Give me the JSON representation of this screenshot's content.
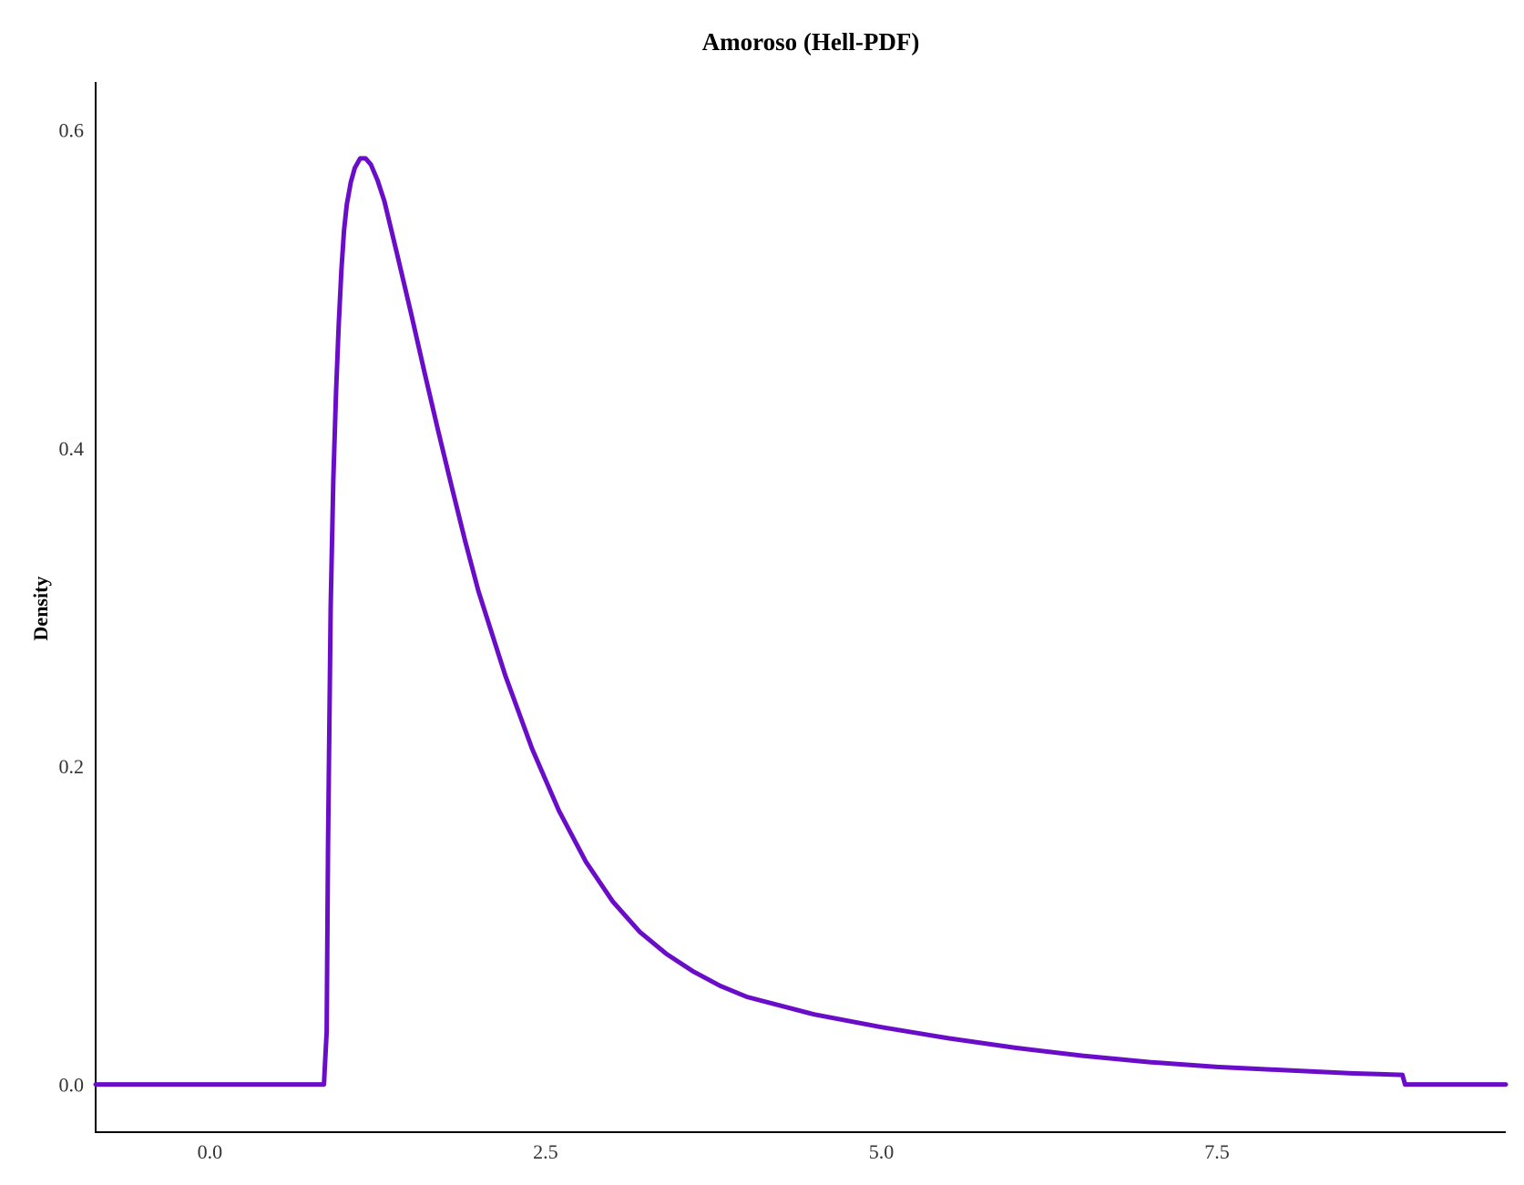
{
  "chart_data": {
    "type": "line",
    "title": "Amoroso (Hell-PDF)",
    "xlabel": "",
    "ylabel": "Density",
    "xlim": [
      -0.85,
      9.65
    ],
    "ylim": [
      -0.03,
      0.63
    ],
    "x_ticks": [
      {
        "value": 0.0,
        "label": "0.0"
      },
      {
        "value": 2.5,
        "label": "2.5"
      },
      {
        "value": 5.0,
        "label": "5.0"
      },
      {
        "value": 7.5,
        "label": "7.5"
      }
    ],
    "y_ticks": [
      {
        "value": 0.0,
        "label": "0.0"
      },
      {
        "value": 0.2,
        "label": "0.2"
      },
      {
        "value": 0.4,
        "label": "0.4"
      },
      {
        "value": 0.6,
        "label": "0.6"
      }
    ],
    "grid": false,
    "legend": "none",
    "series": [
      {
        "color": "#6a0dc8",
        "x": [
          -0.85,
          0.85,
          0.87,
          0.88,
          0.9,
          0.92,
          0.94,
          0.96,
          0.98,
          1.0,
          1.02,
          1.05,
          1.08,
          1.12,
          1.16,
          1.2,
          1.25,
          1.3,
          1.4,
          1.5,
          1.6,
          1.7,
          1.8,
          1.9,
          2.0,
          2.2,
          2.4,
          2.6,
          2.8,
          3.0,
          3.2,
          3.4,
          3.6,
          3.8,
          4.0,
          4.5,
          5.0,
          5.5,
          6.0,
          6.5,
          7.0,
          7.5,
          8.0,
          8.5,
          8.88,
          8.9,
          9.65
        ],
        "y": [
          0.0,
          0.0,
          0.033,
          0.15,
          0.3,
          0.38,
          0.435,
          0.477,
          0.512,
          0.537,
          0.553,
          0.567,
          0.576,
          0.582,
          0.582,
          0.578,
          0.568,
          0.555,
          0.52,
          0.484,
          0.447,
          0.411,
          0.376,
          0.342,
          0.31,
          0.257,
          0.211,
          0.172,
          0.14,
          0.115,
          0.096,
          0.082,
          0.071,
          0.062,
          0.055,
          0.044,
          0.036,
          0.029,
          0.023,
          0.018,
          0.014,
          0.011,
          0.009,
          0.007,
          0.006,
          0.0,
          0.0
        ]
      }
    ]
  }
}
